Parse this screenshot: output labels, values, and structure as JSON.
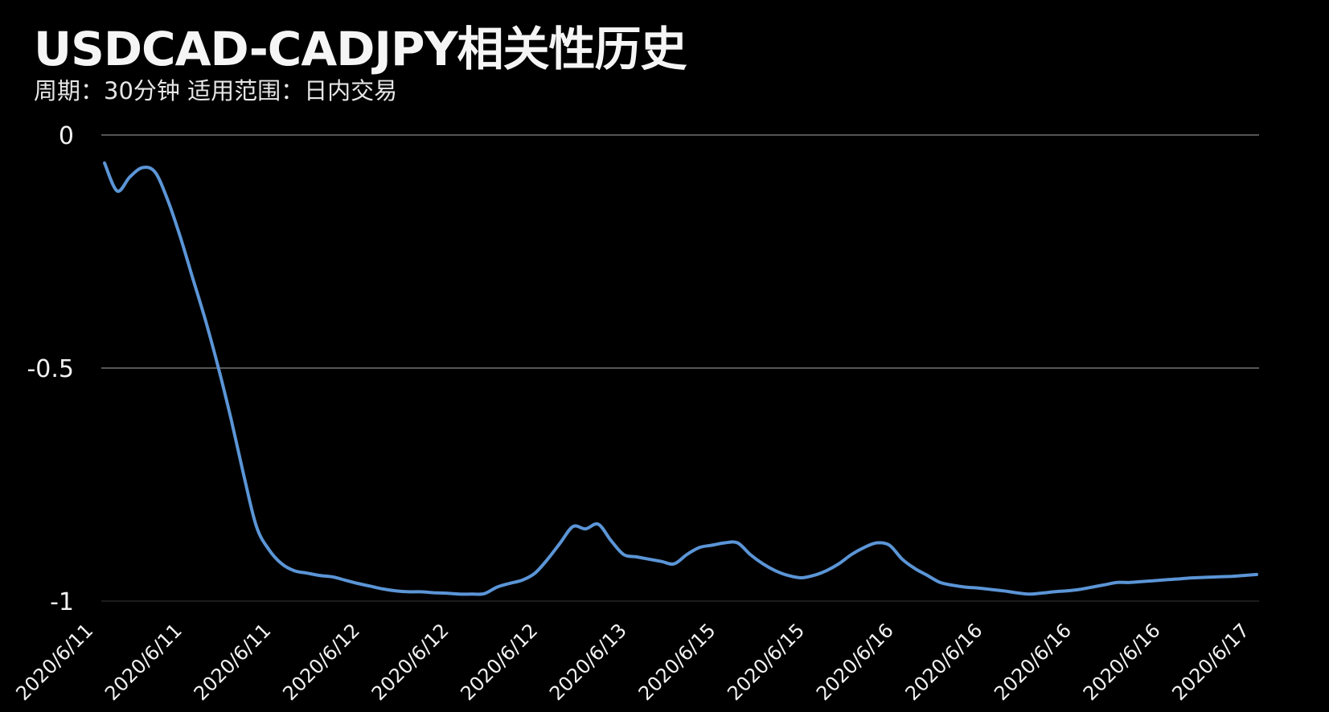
{
  "title": "USDCAD-CADJPY相关性历史",
  "subtitle": "周期：30分钟  适用范围：日内交易",
  "colors": {
    "background": "#000000",
    "line": "#5b95d6",
    "grid": "#555555",
    "text": "#f2f2f2"
  },
  "chart_data": {
    "type": "line",
    "title": "USDCAD-CADJPY相关性历史",
    "subtitle": "周期：30分钟  适用范围：日内交易",
    "xlabel": "",
    "ylabel": "",
    "ylim": [
      -1,
      0
    ],
    "yticks": [
      {
        "value": 0,
        "label": "0"
      },
      {
        "value": -0.5,
        "label": "-0.5"
      },
      {
        "value": -1,
        "label": "-1"
      }
    ],
    "grid": true,
    "legend": "none",
    "xtick_labels": [
      "2020/6/11",
      "2020/6/11",
      "2020/6/11",
      "2020/6/12",
      "2020/6/12",
      "2020/6/12",
      "2020/6/13",
      "2020/6/15",
      "2020/6/15",
      "2020/6/16",
      "2020/6/16",
      "2020/6/16",
      "2020/6/16",
      "2020/6/17"
    ],
    "series": [
      {
        "values": [
          -0.06,
          -0.12,
          -0.09,
          -0.07,
          -0.08,
          -0.14,
          -0.22,
          -0.31,
          -0.4,
          -0.5,
          -0.61,
          -0.73,
          -0.84,
          -0.89,
          -0.92,
          -0.935,
          -0.94,
          -0.945,
          -0.948,
          -0.955,
          -0.962,
          -0.968,
          -0.974,
          -0.978,
          -0.98,
          -0.98,
          -0.982,
          -0.983,
          -0.985,
          -0.985,
          -0.984,
          -0.97,
          -0.962,
          -0.955,
          -0.94,
          -0.91,
          -0.875,
          -0.84,
          -0.845,
          -0.835,
          -0.87,
          -0.9,
          -0.905,
          -0.91,
          -0.915,
          -0.92,
          -0.9,
          -0.885,
          -0.88,
          -0.875,
          -0.875,
          -0.9,
          -0.92,
          -0.935,
          -0.945,
          -0.95,
          -0.945,
          -0.935,
          -0.92,
          -0.9,
          -0.885,
          -0.875,
          -0.88,
          -0.91,
          -0.93,
          -0.945,
          -0.96,
          -0.966,
          -0.97,
          -0.972,
          -0.975,
          -0.978,
          -0.982,
          -0.985,
          -0.983,
          -0.98,
          -0.978,
          -0.975,
          -0.97,
          -0.965,
          -0.96,
          -0.96,
          -0.958,
          -0.956,
          -0.954,
          -0.952,
          -0.95,
          -0.949,
          -0.948,
          -0.947,
          -0.945,
          -0.943
        ]
      }
    ]
  }
}
